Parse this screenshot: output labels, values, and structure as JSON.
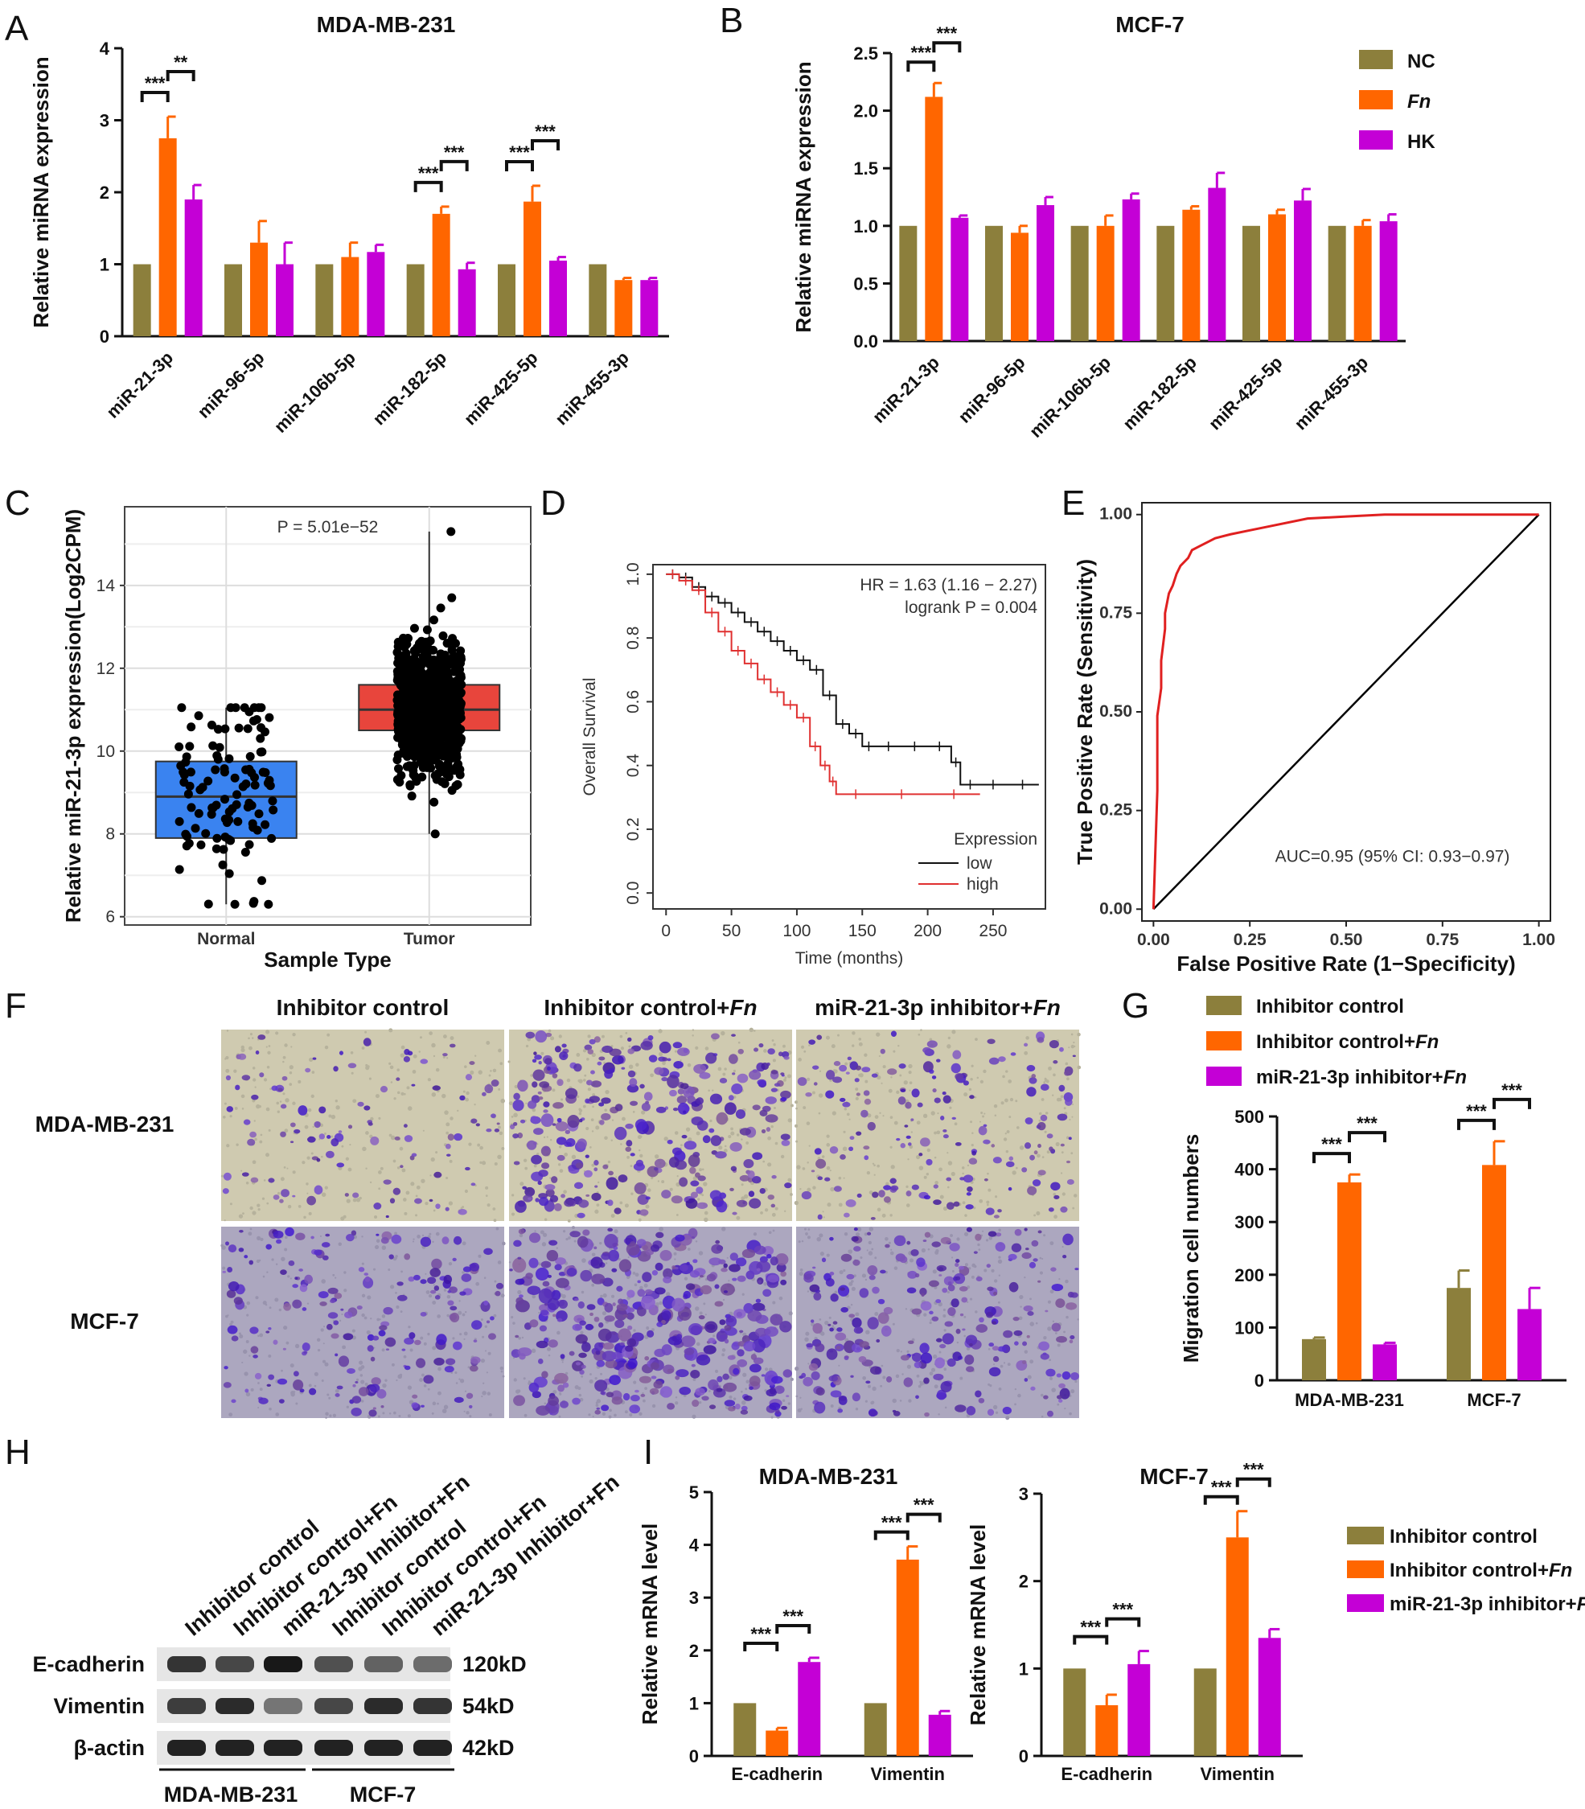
{
  "colors": {
    "nc": "#8c7f3c",
    "fn": "#ff6600",
    "hk": "#c400d6",
    "normal": "#3a83f0",
    "tumor": "#e8453c",
    "low": "#111111",
    "high": "#e03030",
    "roc": "#e02020"
  },
  "panel_labels": [
    "A",
    "B",
    "C",
    "D",
    "E",
    "F",
    "G",
    "H",
    "I"
  ],
  "chart_data": [
    {
      "id": "A",
      "type": "bar",
      "title": "MDA-MB-231",
      "ylabel": "Relative miRNA expression",
      "ylim": [
        0,
        4
      ],
      "yticks": [
        0,
        1,
        2,
        3,
        4
      ],
      "categories": [
        "miR-21-3p",
        "miR-96-5p",
        "miR-106b-5p",
        "miR-182-5p",
        "miR-425-5p",
        "miR-455-3p"
      ],
      "series": [
        {
          "name": "NC",
          "color_key": "nc",
          "values": [
            1,
            1,
            1,
            1,
            1,
            1
          ],
          "errors": [
            0,
            0,
            0,
            0,
            0,
            0
          ]
        },
        {
          "name": "Fn",
          "color_key": "fn",
          "values": [
            2.75,
            1.3,
            1.1,
            1.7,
            1.87,
            0.78
          ],
          "errors": [
            0.3,
            0.3,
            0.2,
            0.1,
            0.22,
            0.03
          ]
        },
        {
          "name": "HK",
          "color_key": "hk",
          "values": [
            1.9,
            1.0,
            1.17,
            0.93,
            1.05,
            0.78
          ],
          "errors": [
            0.2,
            0.3,
            0.1,
            0.09,
            0.05,
            0.03
          ]
        }
      ],
      "significance": [
        {
          "category": 0,
          "from": 0,
          "to": 1,
          "label": "***",
          "level": 0
        },
        {
          "category": 0,
          "from": 1,
          "to": 2,
          "label": "**",
          "level": 1
        },
        {
          "category": 3,
          "from": 0,
          "to": 1,
          "label": "***",
          "level": 0
        },
        {
          "category": 3,
          "from": 1,
          "to": 2,
          "label": "***",
          "level": 1
        },
        {
          "category": 4,
          "from": 0,
          "to": 1,
          "label": "***",
          "level": 0
        },
        {
          "category": 4,
          "from": 1,
          "to": 2,
          "label": "***",
          "level": 1
        }
      ]
    },
    {
      "id": "B",
      "type": "bar",
      "title": "MCF-7",
      "ylabel": "Relative miRNA expression",
      "ylim": [
        0,
        2.5
      ],
      "yticks": [
        "0.0",
        "0.5",
        "1.0",
        "1.5",
        "2.0",
        "2.5"
      ],
      "categories": [
        "miR-21-3p",
        "miR-96-5p",
        "miR-106b-5p",
        "miR-182-5p",
        "miR-425-5p",
        "miR-455-3p"
      ],
      "series": [
        {
          "name": "NC",
          "color_key": "nc",
          "values": [
            1,
            1,
            1,
            1,
            1,
            1
          ],
          "errors": [
            0,
            0,
            0,
            0,
            0,
            0
          ]
        },
        {
          "name": "Fn",
          "color_key": "fn",
          "values": [
            2.12,
            0.94,
            1.0,
            1.14,
            1.1,
            1.0
          ],
          "errors": [
            0.12,
            0.06,
            0.09,
            0.03,
            0.04,
            0.05
          ]
        },
        {
          "name": "HK",
          "color_key": "hk",
          "values": [
            1.07,
            1.18,
            1.23,
            1.33,
            1.22,
            1.04
          ],
          "errors": [
            0.02,
            0.07,
            0.05,
            0.13,
            0.1,
            0.06
          ]
        }
      ],
      "legend": [
        "NC",
        "Fn",
        "HK"
      ],
      "significance": [
        {
          "category": 0,
          "from": 0,
          "to": 1,
          "label": "***",
          "level": 0
        },
        {
          "category": 0,
          "from": 1,
          "to": 2,
          "label": "***",
          "level": 1
        }
      ]
    },
    {
      "id": "C",
      "type": "box",
      "title": "P = 5.01e−52",
      "xlabel": "Sample Type",
      "ylabel": "Relative miR-21-3p expression(Log2CPM)",
      "ylim": [
        5.8,
        15.9
      ],
      "yticks": [
        6,
        8,
        10,
        12,
        14
      ],
      "groups": [
        {
          "name": "Normal",
          "color_key": "normal",
          "q1": 7.9,
          "median": 8.9,
          "q3": 9.75,
          "min": 6.3,
          "max": 11.05,
          "n": 110
        },
        {
          "name": "Tumor",
          "color_key": "tumor",
          "q1": 10.5,
          "median": 11.0,
          "q3": 11.6,
          "min": 8.0,
          "max": 15.3,
          "n": 900
        }
      ]
    },
    {
      "id": "D",
      "type": "line",
      "xlabel": "Time (months)",
      "ylabel": "Overall Survival",
      "xlim": [
        -10,
        290
      ],
      "ylim": [
        -0.05,
        1.03
      ],
      "xticks": [
        0,
        50,
        100,
        150,
        200,
        250
      ],
      "yticks": [
        "0.0",
        "0.2",
        "0.4",
        "0.6",
        "0.8",
        "1.0"
      ],
      "annotation": [
        "HR = 1.63 (1.16 − 2.27)",
        "logrank P = 0.004"
      ],
      "legend_title": "Expression",
      "series": [
        {
          "name": "low",
          "color_key": "low",
          "x": [
            0,
            10,
            20,
            30,
            40,
            50,
            60,
            70,
            80,
            90,
            100,
            110,
            120,
            130,
            140,
            150,
            160,
            180,
            200,
            218,
            225,
            240,
            260,
            285
          ],
          "y": [
            1.0,
            0.99,
            0.96,
            0.93,
            0.91,
            0.88,
            0.85,
            0.82,
            0.79,
            0.76,
            0.73,
            0.7,
            0.62,
            0.53,
            0.5,
            0.46,
            0.46,
            0.46,
            0.46,
            0.41,
            0.34,
            0.34,
            0.34,
            0.34
          ]
        },
        {
          "name": "high",
          "color_key": "high",
          "x": [
            0,
            10,
            20,
            30,
            40,
            50,
            60,
            70,
            80,
            90,
            100,
            110,
            118,
            125,
            130,
            160,
            200,
            240
          ],
          "y": [
            1.0,
            0.98,
            0.95,
            0.88,
            0.82,
            0.76,
            0.72,
            0.67,
            0.63,
            0.59,
            0.55,
            0.46,
            0.4,
            0.35,
            0.31,
            0.31,
            0.31,
            0.31
          ]
        }
      ]
    },
    {
      "id": "E",
      "type": "line",
      "xlabel": "False Positive Rate (1−Specificity)",
      "ylabel": "True Positive Rate (Sensitivity)",
      "xlim": [
        -0.03,
        1.03
      ],
      "ylim": [
        -0.03,
        1.03
      ],
      "xticks": [
        "0.00",
        "0.25",
        "0.50",
        "0.75",
        "1.00"
      ],
      "yticks": [
        "0.00",
        "0.25",
        "0.50",
        "0.75",
        "1.00"
      ],
      "annotation": "AUC=0.95 (95% CI: 0.93−0.97)",
      "series": [
        {
          "name": "ROC",
          "color_key": "roc",
          "x": [
            0,
            0.01,
            0.01,
            0.02,
            0.02,
            0.03,
            0.03,
            0.04,
            0.05,
            0.06,
            0.07,
            0.09,
            0.1,
            0.12,
            0.14,
            0.16,
            0.2,
            0.25,
            0.3,
            0.4,
            0.5,
            0.6,
            0.8,
            1.0
          ],
          "y": [
            0,
            0.3,
            0.49,
            0.56,
            0.63,
            0.71,
            0.75,
            0.8,
            0.82,
            0.85,
            0.87,
            0.89,
            0.91,
            0.92,
            0.93,
            0.94,
            0.95,
            0.96,
            0.97,
            0.99,
            0.995,
            1.0,
            1.0,
            1.0
          ]
        }
      ]
    },
    {
      "id": "G",
      "type": "bar",
      "ylabel": "Migration cell numbers",
      "ylim": [
        0,
        500
      ],
      "yticks": [
        0,
        100,
        200,
        300,
        400,
        500
      ],
      "categories": [
        "MDA-MB-231",
        "MCF-7"
      ],
      "series": [
        {
          "name": "Inhibitor control",
          "color_key": "nc",
          "values": [
            78,
            175
          ],
          "errors": [
            3,
            33
          ]
        },
        {
          "name": "Inhibitor control+Fn",
          "color_key": "fn",
          "values": [
            375,
            408
          ],
          "errors": [
            15,
            45
          ]
        },
        {
          "name": "miR-21-3p inhibitor+Fn",
          "color_key": "hk",
          "values": [
            68,
            135
          ],
          "errors": [
            3,
            40
          ]
        }
      ],
      "significance": [
        {
          "category": 0,
          "from": 0,
          "to": 1,
          "label": "***",
          "level": 0
        },
        {
          "category": 0,
          "from": 1,
          "to": 2,
          "label": "***",
          "level": 1
        },
        {
          "category": 1,
          "from": 0,
          "to": 1,
          "label": "***",
          "level": 0
        },
        {
          "category": 1,
          "from": 1,
          "to": 2,
          "label": "***",
          "level": 1
        }
      ]
    },
    {
      "id": "I1",
      "type": "bar",
      "title": "MDA-MB-231",
      "ylabel": "Relative mRNA level",
      "ylim": [
        0,
        5
      ],
      "yticks": [
        0,
        1,
        2,
        3,
        4,
        5
      ],
      "categories": [
        "E-cadherin",
        "Vimentin"
      ],
      "series": [
        {
          "name": "Inhibitor control",
          "color_key": "nc",
          "values": [
            1,
            1
          ],
          "errors": [
            0,
            0
          ]
        },
        {
          "name": "Inhibitor control+Fn",
          "color_key": "fn",
          "values": [
            0.48,
            3.72
          ],
          "errors": [
            0.05,
            0.25
          ]
        },
        {
          "name": "miR-21-3p inhibitor+Fn",
          "color_key": "hk",
          "values": [
            1.78,
            0.78
          ],
          "errors": [
            0.08,
            0.07
          ]
        }
      ],
      "significance": [
        {
          "category": 0,
          "from": 0,
          "to": 1,
          "label": "***",
          "level": 0
        },
        {
          "category": 0,
          "from": 1,
          "to": 2,
          "label": "***",
          "level": 1
        },
        {
          "category": 1,
          "from": 0,
          "to": 1,
          "label": "***",
          "level": 0
        },
        {
          "category": 1,
          "from": 1,
          "to": 2,
          "label": "***",
          "level": 1
        }
      ]
    },
    {
      "id": "I2",
      "type": "bar",
      "title": "MCF-7",
      "ylabel": "Relative mRNA level",
      "ylim": [
        0,
        3
      ],
      "yticks": [
        0,
        1,
        2,
        3
      ],
      "categories": [
        "E-cadherin",
        "Vimentin"
      ],
      "series": [
        {
          "name": "Inhibitor control",
          "color_key": "nc",
          "values": [
            1,
            1
          ],
          "errors": [
            0,
            0
          ]
        },
        {
          "name": "Inhibitor control+Fn",
          "color_key": "fn",
          "values": [
            0.58,
            2.5
          ],
          "errors": [
            0.12,
            0.3
          ]
        },
        {
          "name": "miR-21-3p inhibitor+Fn",
          "color_key": "hk",
          "values": [
            1.05,
            1.35
          ],
          "errors": [
            0.15,
            0.1
          ]
        }
      ],
      "significance": [
        {
          "category": 0,
          "from": 0,
          "to": 1,
          "label": "***",
          "level": 0
        },
        {
          "category": 0,
          "from": 1,
          "to": 2,
          "label": "***",
          "level": 1
        },
        {
          "category": 1,
          "from": 0,
          "to": 1,
          "label": "***",
          "level": 0
        },
        {
          "category": 1,
          "from": 1,
          "to": 2,
          "label": "***",
          "level": 1
        }
      ]
    }
  ],
  "legend_G": [
    "Inhibitor control",
    "Inhibitor control+",
    "miR-21-3p inhibitor+"
  ],
  "fn_text": "Fn",
  "panel_F": {
    "columns": [
      "Inhibitor control",
      "Inhibitor control+",
      "miR-21-3p inhibitor+"
    ],
    "rows": [
      "MDA-MB-231",
      "MCF-7"
    ],
    "density": [
      [
        0.25,
        0.75,
        0.4
      ],
      [
        0.45,
        1.0,
        0.6
      ]
    ]
  },
  "panel_H": {
    "lanes": [
      "Inhibitor control",
      "Inhibitor control+Fn",
      "miR-21-3p Inhibitor+Fn",
      "Inhibitor control",
      "Inhibitor control+Fn",
      "miR-21-3p Inhibitor+Fn"
    ],
    "proteins": [
      {
        "name": "E-cadherin",
        "size": "120kD",
        "intensity": [
          0.8,
          0.7,
          0.95,
          0.65,
          0.55,
          0.5
        ]
      },
      {
        "name": "Vimentin",
        "size": "54kD",
        "intensity": [
          0.75,
          0.85,
          0.45,
          0.7,
          0.85,
          0.8
        ]
      },
      {
        "name": "β-actin",
        "size": "42kD",
        "intensity": [
          0.9,
          0.9,
          0.9,
          0.9,
          0.9,
          0.9
        ]
      }
    ],
    "groups": [
      "MDA-MB-231",
      "MCF-7"
    ]
  }
}
